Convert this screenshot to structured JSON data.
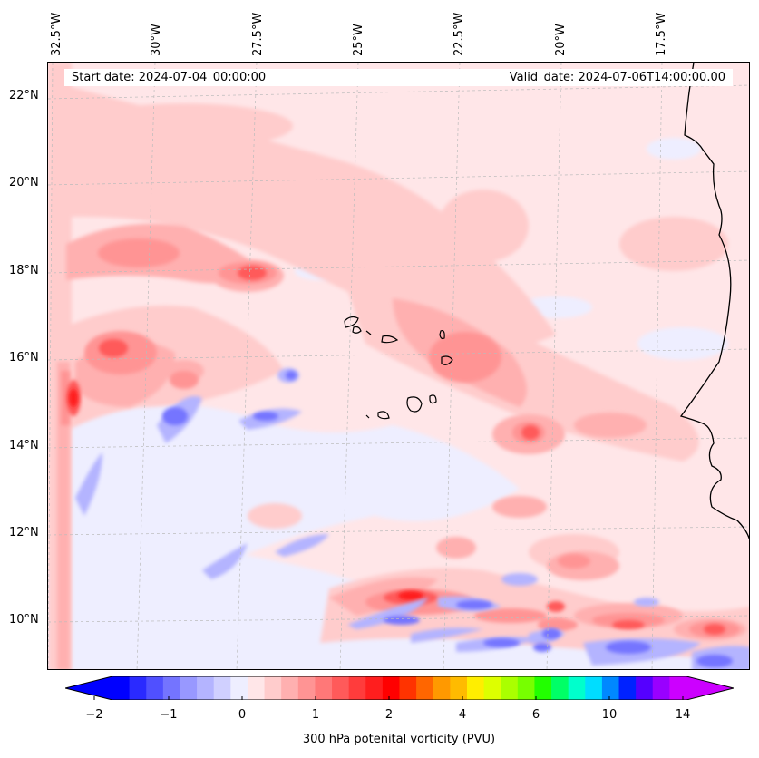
{
  "map": {
    "start_date": "Start date: 2024-07-04_00:00:00",
    "valid_date": "Valid_date: 2024-07-06T14:00:00.00",
    "longitude_labels": [
      "32.5°W",
      "30°W",
      "27.5°W",
      "25°W",
      "22.5°W",
      "20°W",
      "17.5°W"
    ],
    "latitude_labels": [
      "22°N",
      "20°N",
      "18°N",
      "16°N",
      "14°N",
      "12°N",
      "10°N"
    ]
  },
  "colorbar": {
    "title": "300 hPa potenital vorticity (PVU)",
    "tick_labels": [
      "−2",
      "−1",
      "0",
      "1",
      "2",
      "4",
      "6",
      "10",
      "14"
    ],
    "colors": [
      "#0000ff",
      "#2a2aff",
      "#5050ff",
      "#7474ff",
      "#9898ff",
      "#b4b4ff",
      "#d0d0ff",
      "#eeeeff",
      "#ffe6e8",
      "#ffcccc",
      "#ffb0b0",
      "#ff9494",
      "#ff7878",
      "#ff5a5a",
      "#ff3c3c",
      "#ff1e1e",
      "#ff0000",
      "#ff3300",
      "#ff6600",
      "#ff9900",
      "#ffbb00",
      "#ffee00",
      "#ddff00",
      "#aaff00",
      "#77ff00",
      "#22ff00",
      "#00ff66",
      "#00ffcc",
      "#00ddff",
      "#0088ff",
      "#0022ff",
      "#5500ff",
      "#9900ff",
      "#cc00ff"
    ],
    "extend_low_color": "#0000ff",
    "extend_high_color": "#cc00ff"
  }
}
